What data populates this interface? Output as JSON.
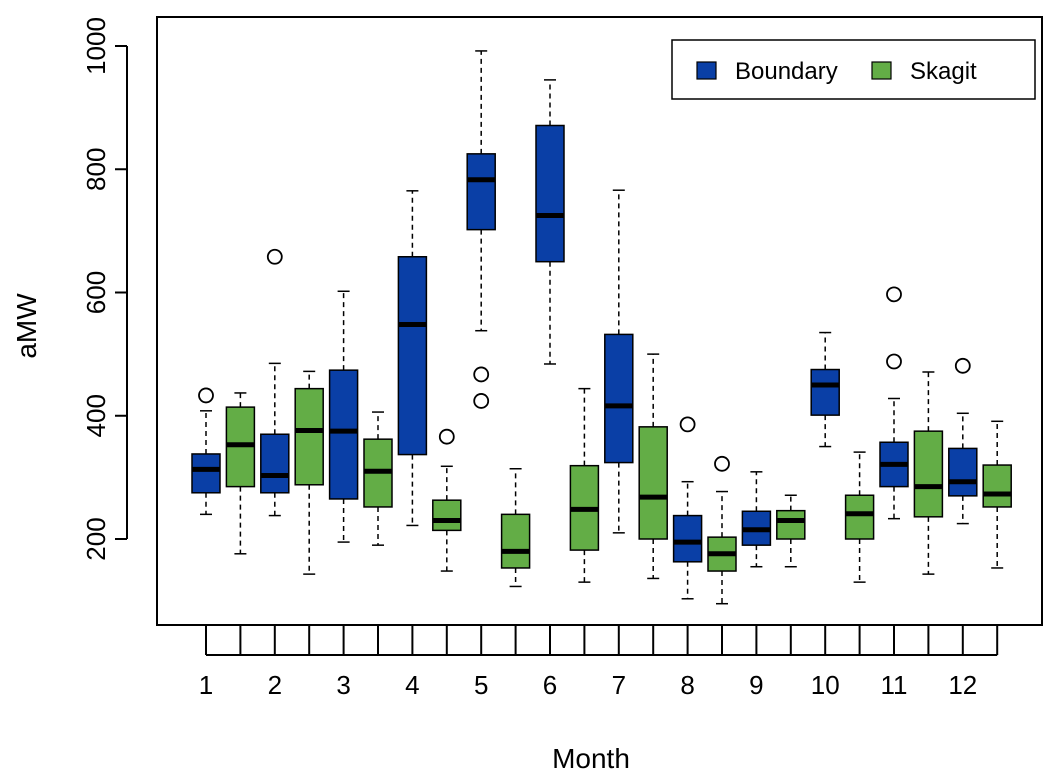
{
  "chart_data": {
    "type": "boxplot",
    "title": "",
    "xlabel": "Month",
    "ylabel": "aMW",
    "ylim": [
      60,
      1020
    ],
    "yticks": [
      200,
      400,
      600,
      800,
      1000
    ],
    "categories": [
      "1",
      "2",
      "3",
      "4",
      "5",
      "6",
      "7",
      "8",
      "9",
      "10",
      "11",
      "12"
    ],
    "grid": false,
    "legend": {
      "position": "top-right",
      "entries": [
        "Boundary",
        "Skagit"
      ]
    },
    "series": [
      {
        "name": "Boundary",
        "color": "#0a3fa6",
        "boxes": [
          {
            "min": 240,
            "q1": 275,
            "median": 313,
            "q3": 338,
            "max": 408,
            "outliers": [
              433
            ]
          },
          {
            "min": 238,
            "q1": 275,
            "median": 303,
            "q3": 370,
            "max": 485,
            "outliers": [
              658
            ]
          },
          {
            "min": 195,
            "q1": 265,
            "median": 375,
            "q3": 474,
            "max": 602,
            "outliers": []
          },
          {
            "min": 222,
            "q1": 337,
            "median": 548,
            "q3": 658,
            "max": 765,
            "outliers": []
          },
          {
            "min": 538,
            "q1": 702,
            "median": 783,
            "q3": 825,
            "max": 992,
            "outliers": [
              467,
              424
            ]
          },
          {
            "min": 484,
            "q1": 650,
            "median": 725,
            "q3": 871,
            "max": 945,
            "outliers": []
          },
          {
            "min": 210,
            "q1": 324,
            "median": 416,
            "q3": 532,
            "max": 766,
            "outliers": []
          },
          {
            "min": 103,
            "q1": 163,
            "median": 195,
            "q3": 238,
            "max": 293,
            "outliers": [
              386
            ]
          },
          {
            "min": 155,
            "q1": 190,
            "median": 215,
            "q3": 245,
            "max": 309,
            "outliers": []
          },
          {
            "min": 350,
            "q1": 401,
            "median": 450,
            "q3": 475,
            "max": 535,
            "outliers": []
          },
          {
            "min": 233,
            "q1": 285,
            "median": 321,
            "q3": 357,
            "max": 428,
            "outliers": [
              597,
              488
            ]
          },
          {
            "min": 225,
            "q1": 270,
            "median": 293,
            "q3": 347,
            "max": 404,
            "outliers": [
              481
            ]
          }
        ]
      },
      {
        "name": "Skagit",
        "color": "#63ad46",
        "boxes": [
          {
            "min": 176,
            "q1": 285,
            "median": 353,
            "q3": 414,
            "max": 437,
            "outliers": []
          },
          {
            "min": 143,
            "q1": 288,
            "median": 376,
            "q3": 444,
            "max": 472,
            "outliers": []
          },
          {
            "min": 190,
            "q1": 252,
            "median": 310,
            "q3": 362,
            "max": 406,
            "outliers": []
          },
          {
            "min": 148,
            "q1": 214,
            "median": 230,
            "q3": 263,
            "max": 318,
            "outliers": [
              366
            ]
          },
          {
            "min": 123,
            "q1": 153,
            "median": 180,
            "q3": 240,
            "max": 314,
            "outliers": []
          },
          {
            "min": 130,
            "q1": 182,
            "median": 248,
            "q3": 319,
            "max": 444,
            "outliers": []
          },
          {
            "min": 136,
            "q1": 200,
            "median": 268,
            "q3": 382,
            "max": 500,
            "outliers": []
          },
          {
            "min": 95,
            "q1": 148,
            "median": 176,
            "q3": 203,
            "max": 277,
            "outliers": [
              322
            ]
          },
          {
            "min": 155,
            "q1": 200,
            "median": 230,
            "q3": 246,
            "max": 271,
            "outliers": []
          },
          {
            "min": 130,
            "q1": 200,
            "median": 241,
            "q3": 271,
            "max": 341,
            "outliers": []
          },
          {
            "min": 143,
            "q1": 236,
            "median": 285,
            "q3": 375,
            "max": 471,
            "outliers": []
          },
          {
            "min": 153,
            "q1": 252,
            "median": 273,
            "q3": 320,
            "max": 391,
            "outliers": []
          }
        ]
      }
    ]
  }
}
